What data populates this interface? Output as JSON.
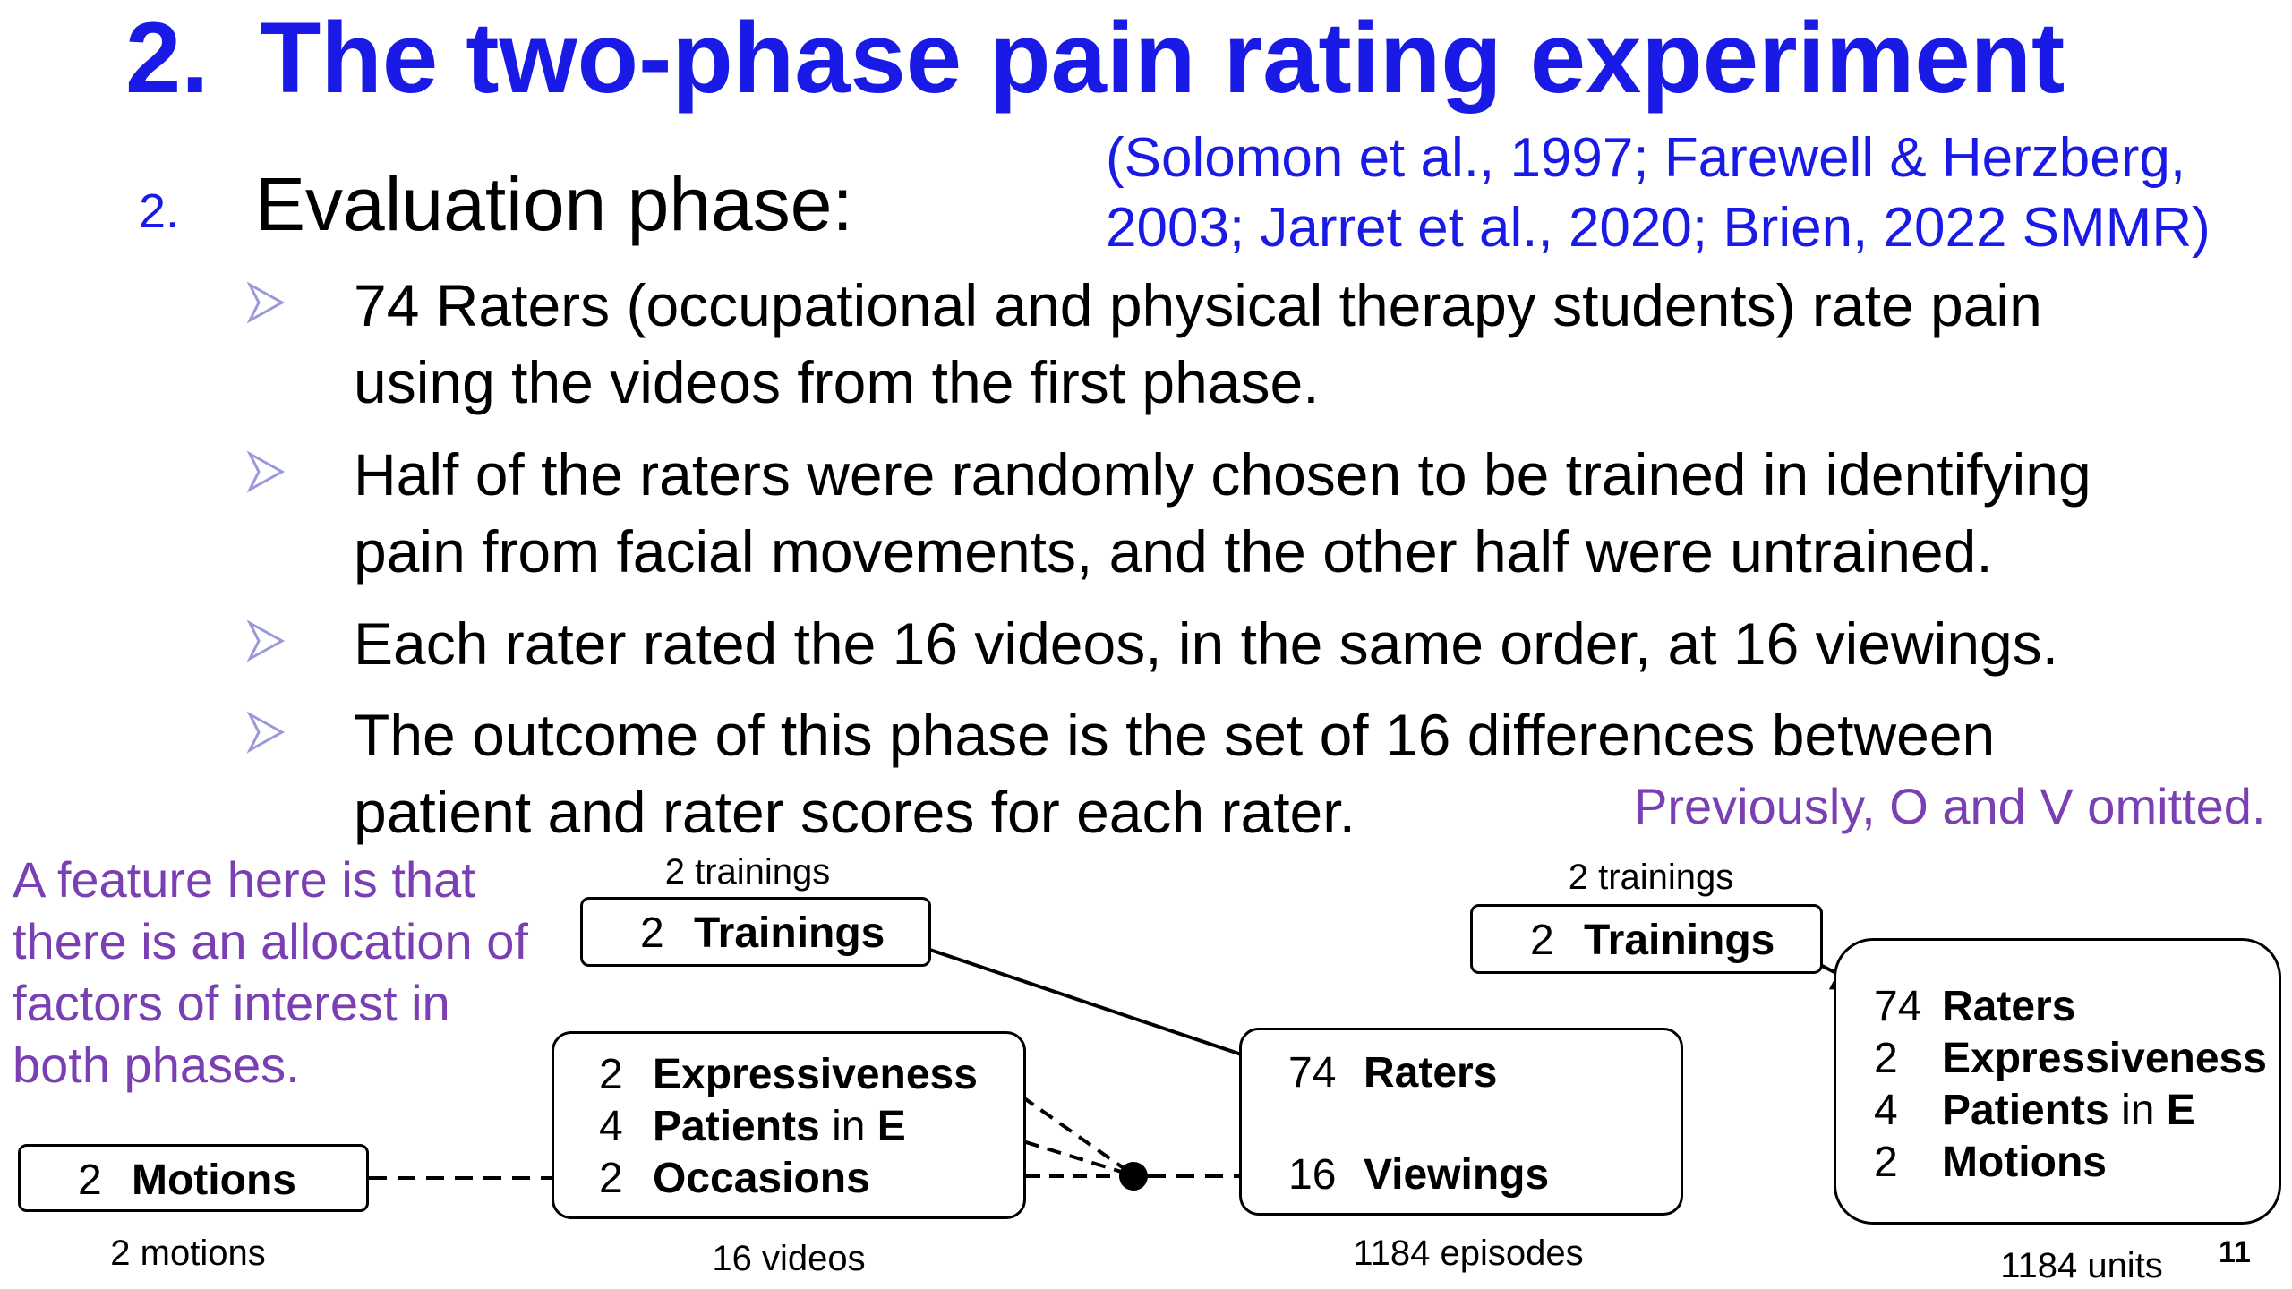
{
  "title": {
    "number": "2.",
    "text": "The two-phase pain rating experiment"
  },
  "citation": {
    "line1": "(Solomon et al., 1997; Farewell & Herzberg,",
    "line2": "2003; Jarret et al., 2020; Brien, 2022 SMMR)"
  },
  "section": {
    "number": "2.",
    "title": "Evaluation phase:"
  },
  "bullets": [
    {
      "line1": "74 Raters (occupational and physical therapy students) rate pain",
      "line2": "using the videos from the first phase."
    },
    {
      "line1": "Half of the raters were randomly chosen to be trained in identifying",
      "line2": "pain from facial movements, and the other half were untrained."
    },
    {
      "line1": "Each rater rated the 16 videos, in the same order, at 16 viewings.",
      "line2": ""
    },
    {
      "line1": "The outcome of this phase is the set of 16 differences between",
      "line2": "patient and rater scores for each rater."
    }
  ],
  "bullet_icon": "arrowhead-bullet-icon",
  "note_right": "Previously, O and V omitted.",
  "note_left": "A feature here is that there is an allocation of factors of interest in both phases.",
  "diagram": {
    "motions_box": {
      "n": "2",
      "name": "Motions",
      "caption": "2 motions"
    },
    "trainings_box_left": {
      "n": "2",
      "name": "Trainings",
      "label": "2 trainings"
    },
    "videos_box": {
      "rows": [
        {
          "n": "2",
          "name": "Expressiveness",
          "suffix": ""
        },
        {
          "n": "4",
          "name": "Patients",
          "suffix": " in ",
          "suffix_bold": "E"
        },
        {
          "n": "2",
          "name": "Occasions",
          "suffix": ""
        }
      ],
      "caption": "16 videos"
    },
    "episodes_box": {
      "rows": [
        {
          "n": "74",
          "name": "Raters"
        },
        {
          "n": "16",
          "name": "Viewings"
        }
      ],
      "caption": "1184 episodes"
    },
    "trainings_box_right": {
      "n": "2",
      "name": "Trainings",
      "label": "2 trainings"
    },
    "units_box": {
      "rows": [
        {
          "n": "74",
          "name": "Raters",
          "suffix": "",
          "suffix_bold": ""
        },
        {
          "n": "2",
          "name": "Expressiveness",
          "suffix": "",
          "suffix_bold": ""
        },
        {
          "n": "4",
          "name": "Patients",
          "suffix": " in ",
          "suffix_bold": "E"
        },
        {
          "n": "2",
          "name": "Motions",
          "suffix": "",
          "suffix_bold": ""
        }
      ],
      "caption": "1184 units"
    }
  },
  "page_number": "11",
  "colors": {
    "title": "#1a1ae6",
    "note": "#7a3fb2",
    "bullet_arrow": "#9a9ad8"
  }
}
